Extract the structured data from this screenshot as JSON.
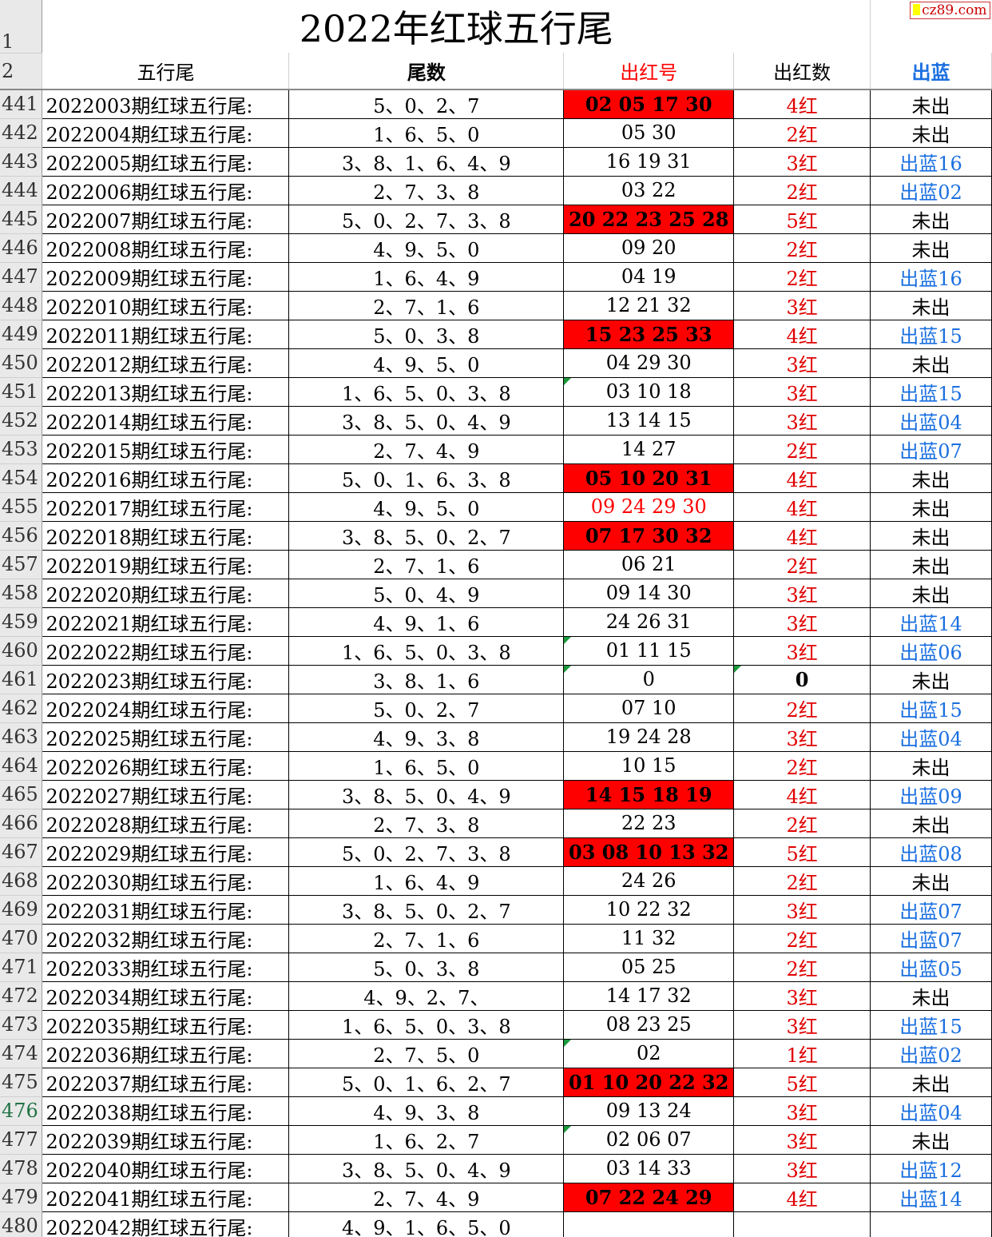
{
  "title": "2022年红球五行尾",
  "watermark": "cz89.com",
  "headers": {
    "row1": "1",
    "row2": "2",
    "a": "五行尾",
    "b": "尾数",
    "c": "出红号",
    "d": "出红数",
    "e": "出蓝"
  },
  "colors": {
    "red": "#ff0000",
    "blue": "#1a6fe0"
  },
  "rows": [
    [
      "441",
      "2022003期红球五行尾:",
      "5、0、2、7",
      "02 05 17 30",
      "fill",
      "4红",
      "未出"
    ],
    [
      "442",
      "2022004期红球五行尾:",
      "1、6、5、0",
      "05 30",
      "plain",
      "2红",
      "未出"
    ],
    [
      "443",
      "2022005期红球五行尾:",
      "3、8、1、6、4、9",
      "16 19 31",
      "plain",
      "3红",
      "出蓝16"
    ],
    [
      "444",
      "2022006期红球五行尾:",
      "2、7、3、8",
      "03 22",
      "plain",
      "2红",
      "出蓝02"
    ],
    [
      "445",
      "2022007期红球五行尾:",
      "5、0、2、7、3、8",
      "20 22 23 25 28",
      "fill",
      "5红",
      "未出"
    ],
    [
      "446",
      "2022008期红球五行尾:",
      "4、9、5、0",
      "09 20",
      "plain",
      "2红",
      "未出"
    ],
    [
      "447",
      "2022009期红球五行尾:",
      "1、6、4、9",
      "04 19",
      "plain",
      "2红",
      "出蓝16"
    ],
    [
      "448",
      "2022010期红球五行尾:",
      "2、7、1、6",
      "12 21 32",
      "plain",
      "3红",
      "未出"
    ],
    [
      "449",
      "2022011期红球五行尾:",
      "5、0、3、8",
      "15 23 25 33",
      "fill",
      "4红",
      "出蓝15"
    ],
    [
      "450",
      "2022012期红球五行尾:",
      "4、9、5、0",
      "04 29 30",
      "plain",
      "3红",
      "未出"
    ],
    [
      "451",
      "2022013期红球五行尾:",
      "1、6、5、0、3、8",
      "03 10 18",
      "plain",
      "3红",
      "出蓝15"
    ],
    [
      "452",
      "2022014期红球五行尾:",
      "3、8、5、0、4、9",
      "13 14 15",
      "plain",
      "3红",
      "出蓝04"
    ],
    [
      "453",
      "2022015期红球五行尾:",
      "2、7、4、9",
      "14 27",
      "plain",
      "2红",
      "出蓝07"
    ],
    [
      "454",
      "2022016期红球五行尾:",
      "5、0、1、6、3、8",
      "05 10 20 31",
      "fill",
      "4红",
      "未出"
    ],
    [
      "455",
      "2022017期红球五行尾:",
      "4、9、5、0",
      "09 24 29 30",
      "redtext",
      "4红",
      "未出"
    ],
    [
      "456",
      "2022018期红球五行尾:",
      "3、8、5、0、2、7",
      "07 17 30 32",
      "fill",
      "4红",
      "未出"
    ],
    [
      "457",
      "2022019期红球五行尾:",
      "2、7、1、6",
      "06 21",
      "plain",
      "2红",
      "未出"
    ],
    [
      "458",
      "2022020期红球五行尾:",
      "5、0、4、9",
      "09 14 30",
      "plain",
      "3红",
      "未出"
    ],
    [
      "459",
      "2022021期红球五行尾:",
      "4、9、1、6",
      "24 26 31",
      "plain",
      "3红",
      "出蓝14"
    ],
    [
      "460",
      "2022022期红球五行尾:",
      "1、6、5、0、3、8",
      "01 11 15",
      "plain",
      "3红",
      "出蓝06"
    ],
    [
      "461",
      "2022023期红球五行尾:",
      "3、8、1、6",
      "0",
      "plain",
      "0",
      "未出"
    ],
    [
      "462",
      "2022024期红球五行尾:",
      "5、0、2、7",
      "07 10",
      "plain",
      "2红",
      "出蓝15"
    ],
    [
      "463",
      "2022025期红球五行尾:",
      "4、9、3、8",
      "19 24 28",
      "plain",
      "3红",
      "出蓝04"
    ],
    [
      "464",
      "2022026期红球五行尾:",
      "1、6、5、0",
      "10 15",
      "plain",
      "2红",
      "未出"
    ],
    [
      "465",
      "2022027期红球五行尾:",
      "3、8、5、0、4、9",
      "14 15 18 19",
      "fill",
      "4红",
      "出蓝09"
    ],
    [
      "466",
      "2022028期红球五行尾:",
      "2、7、3、8",
      "22 23",
      "plain",
      "2红",
      "未出"
    ],
    [
      "467",
      "2022029期红球五行尾:",
      "5、0、2、7、3、8",
      "03 08 10 13 32",
      "fill",
      "5红",
      "出蓝08"
    ],
    [
      "468",
      "2022030期红球五行尾:",
      "1、6、4、9",
      "24 26",
      "plain",
      "2红",
      "未出"
    ],
    [
      "469",
      "2022031期红球五行尾:",
      "3、8、5、0、2、7",
      "10 22 32",
      "plain",
      "3红",
      "出蓝07"
    ],
    [
      "470",
      "2022032期红球五行尾:",
      "2、7、1、6",
      "11 32",
      "plain",
      "2红",
      "出蓝07"
    ],
    [
      "471",
      "2022033期红球五行尾:",
      "5、0、3、8",
      "05 25",
      "plain",
      "2红",
      "出蓝05"
    ],
    [
      "472",
      "2022034期红球五行尾:",
      "4、9、2、7、",
      "14 17 32",
      "plain",
      "3红",
      "未出"
    ],
    [
      "473",
      "2022035期红球五行尾:",
      "1、6、5、0、3、8",
      "08 23 25",
      "plain",
      "3红",
      "出蓝15"
    ],
    [
      "474",
      "2022036期红球五行尾:",
      "2、7、5、0",
      "02",
      "plain",
      "1红",
      "出蓝02"
    ],
    [
      "475",
      "2022037期红球五行尾:",
      "5、0、1、6、2、7",
      "01 10 20 22 32",
      "fill",
      "5红",
      "未出"
    ],
    [
      "476",
      "2022038期红球五行尾:",
      "4、9、3、8",
      "09 13 24",
      "plain",
      "3红",
      "出蓝04"
    ],
    [
      "477",
      "2022039期红球五行尾:",
      "1、6、2、7",
      "02 06 07",
      "plain",
      "3红",
      "未出"
    ],
    [
      "478",
      "2022040期红球五行尾:",
      "3、8、5、0、4、9",
      "03 14 33",
      "plain",
      "3红",
      "出蓝12"
    ],
    [
      "479",
      "2022041期红球五行尾:",
      "2、7、4、9",
      "07 22 24 29",
      "fill",
      "4红",
      "出蓝14"
    ],
    [
      "480",
      "2022042期红球五行尾:",
      "4、9、1、6、5、0",
      "",
      "plain",
      "",
      ""
    ]
  ],
  "comment_cells": [
    "451c",
    "460c",
    "461c",
    "461d",
    "474c",
    "477c"
  ]
}
